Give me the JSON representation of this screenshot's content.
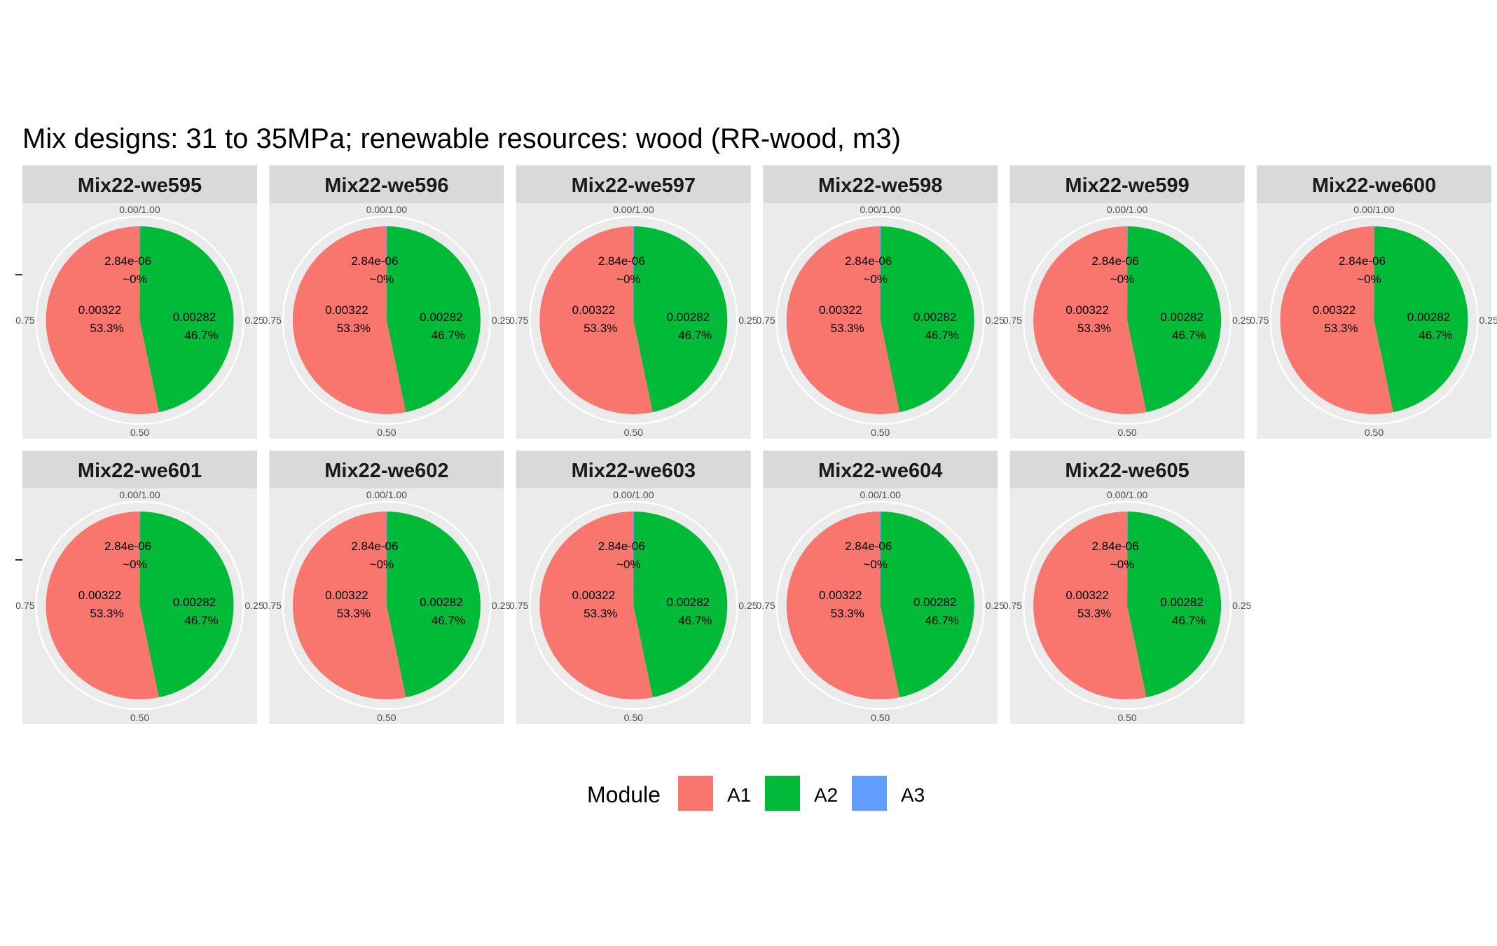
{
  "chart_data": {
    "type": "pie",
    "title": "Mix designs: 31 to 35MPa; renewable resources: wood (RR-wood, m3)",
    "theta_ticks": [
      "0.00/1.00",
      "0.25",
      "0.50",
      "0.75"
    ],
    "legend": {
      "title": "Module",
      "position": "bottom",
      "entries": [
        {
          "name": "A1",
          "color": "#F8766D"
        },
        {
          "name": "A2",
          "color": "#00BA38"
        },
        {
          "name": "A3",
          "color": "#619CFF"
        }
      ]
    },
    "slice_order": [
      "A1",
      "A2",
      "A3"
    ],
    "panels": [
      {
        "name": "Mix22-we595",
        "values": [
          0.00322,
          0.00282,
          2.84e-06
        ],
        "labels": [
          {
            "value": "0.00322",
            "percent": "53.3%"
          },
          {
            "value": "0.00282",
            "percent": "46.7%"
          },
          {
            "value": "2.84e-06",
            "percent": "~0%"
          }
        ]
      },
      {
        "name": "Mix22-we596",
        "values": [
          0.00322,
          0.00282,
          2.84e-06
        ],
        "labels": [
          {
            "value": "0.00322",
            "percent": "53.3%"
          },
          {
            "value": "0.00282",
            "percent": "46.7%"
          },
          {
            "value": "2.84e-06",
            "percent": "~0%"
          }
        ]
      },
      {
        "name": "Mix22-we597",
        "values": [
          0.00322,
          0.00282,
          2.84e-06
        ],
        "labels": [
          {
            "value": "0.00322",
            "percent": "53.3%"
          },
          {
            "value": "0.00282",
            "percent": "46.7%"
          },
          {
            "value": "2.84e-06",
            "percent": "~0%"
          }
        ]
      },
      {
        "name": "Mix22-we598",
        "values": [
          0.00322,
          0.00282,
          2.84e-06
        ],
        "labels": [
          {
            "value": "0.00322",
            "percent": "53.3%"
          },
          {
            "value": "0.00282",
            "percent": "46.7%"
          },
          {
            "value": "2.84e-06",
            "percent": "~0%"
          }
        ]
      },
      {
        "name": "Mix22-we599",
        "values": [
          0.00322,
          0.00282,
          2.84e-06
        ],
        "labels": [
          {
            "value": "0.00322",
            "percent": "53.3%"
          },
          {
            "value": "0.00282",
            "percent": "46.7%"
          },
          {
            "value": "2.84e-06",
            "percent": "~0%"
          }
        ]
      },
      {
        "name": "Mix22-we600",
        "values": [
          0.00322,
          0.00282,
          2.84e-06
        ],
        "labels": [
          {
            "value": "0.00322",
            "percent": "53.3%"
          },
          {
            "value": "0.00282",
            "percent": "46.7%"
          },
          {
            "value": "2.84e-06",
            "percent": "~0%"
          }
        ]
      },
      {
        "name": "Mix22-we601",
        "values": [
          0.00322,
          0.00282,
          2.84e-06
        ],
        "labels": [
          {
            "value": "0.00322",
            "percent": "53.3%"
          },
          {
            "value": "0.00282",
            "percent": "46.7%"
          },
          {
            "value": "2.84e-06",
            "percent": "~0%"
          }
        ]
      },
      {
        "name": "Mix22-we602",
        "values": [
          0.00322,
          0.00282,
          2.84e-06
        ],
        "labels": [
          {
            "value": "0.00322",
            "percent": "53.3%"
          },
          {
            "value": "0.00282",
            "percent": "46.7%"
          },
          {
            "value": "2.84e-06",
            "percent": "~0%"
          }
        ]
      },
      {
        "name": "Mix22-we603",
        "values": [
          0.00322,
          0.00282,
          2.84e-06
        ],
        "labels": [
          {
            "value": "0.00322",
            "percent": "53.3%"
          },
          {
            "value": "0.00282",
            "percent": "46.7%"
          },
          {
            "value": "2.84e-06",
            "percent": "~0%"
          }
        ]
      },
      {
        "name": "Mix22-we604",
        "values": [
          0.00322,
          0.00282,
          2.84e-06
        ],
        "labels": [
          {
            "value": "0.00322",
            "percent": "53.3%"
          },
          {
            "value": "0.00282",
            "percent": "46.7%"
          },
          {
            "value": "2.84e-06",
            "percent": "~0%"
          }
        ]
      },
      {
        "name": "Mix22-we605",
        "values": [
          0.00322,
          0.00282,
          2.84e-06
        ],
        "labels": [
          {
            "value": "0.00322",
            "percent": "53.3%"
          },
          {
            "value": "0.00282",
            "percent": "46.7%"
          },
          {
            "value": "2.84e-06",
            "percent": "~0%"
          }
        ]
      }
    ]
  }
}
